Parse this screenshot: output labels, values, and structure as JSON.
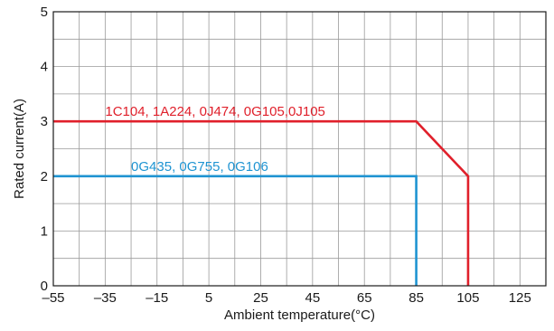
{
  "chart_data": {
    "type": "line",
    "title": "",
    "xlabel": "Ambient temperature(°C)",
    "ylabel": "Rated current(A)",
    "xlim": [
      -55,
      135
    ],
    "ylim": [
      0,
      5
    ],
    "x_ticks": [
      -55,
      -35,
      -15,
      5,
      25,
      45,
      65,
      85,
      105,
      125
    ],
    "x_tick_labels": [
      "–55",
      "–35",
      "–15",
      "5",
      "25",
      "45",
      "65",
      "85",
      "105",
      "125"
    ],
    "y_ticks": [
      0,
      1,
      2,
      3,
      4,
      5
    ],
    "y_tick_labels": [
      "0",
      "1",
      "2",
      "3",
      "4",
      "5"
    ],
    "x_minor_step": 10,
    "y_minor_step": 0.5,
    "grid": true,
    "series": [
      {
        "name": "1C104, 1A224, 0J474, 0G105,0J105",
        "color": "#e0202b",
        "points": [
          [
            -55,
            3
          ],
          [
            85,
            3
          ],
          [
            105,
            2
          ],
          [
            105,
            0
          ]
        ],
        "label_anchor": [
          -35,
          3
        ]
      },
      {
        "name": "0G435, 0G755, 0G106",
        "color": "#1f94d2",
        "points": [
          [
            -55,
            2
          ],
          [
            85,
            2
          ],
          [
            85,
            0
          ]
        ],
        "label_anchor": [
          -25,
          2
        ]
      }
    ]
  }
}
